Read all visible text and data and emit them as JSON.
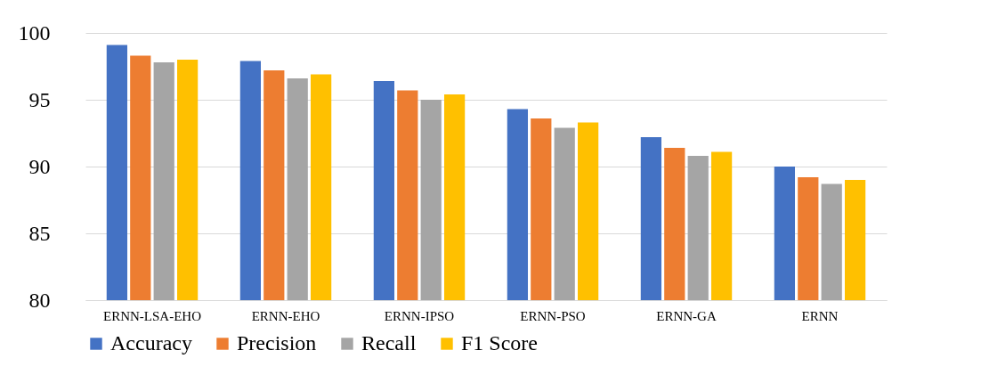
{
  "chart_data": {
    "type": "bar",
    "categories": [
      "ERNN-LSA-EHO",
      "ERNN-EHO",
      "ERNN-IPSO",
      "ERNN-PSO",
      "ERNN-GA",
      "ERNN"
    ],
    "series": [
      {
        "name": "Accuracy",
        "color": "#4472c4",
        "values": [
          99.1,
          97.9,
          96.4,
          94.3,
          92.2,
          90.0
        ]
      },
      {
        "name": "Precision",
        "color": "#ed7d31",
        "values": [
          98.3,
          97.2,
          95.7,
          93.6,
          91.4,
          89.2
        ]
      },
      {
        "name": "Recall",
        "color": "#a5a5a5",
        "values": [
          97.8,
          96.6,
          95.0,
          92.9,
          90.8,
          88.7
        ]
      },
      {
        "name": "F1 Score",
        "color": "#ffc000",
        "values": [
          98.0,
          96.9,
          95.4,
          93.3,
          91.1,
          89.0
        ]
      }
    ],
    "ylim": [
      80,
      100
    ],
    "yticks": [
      80,
      85,
      90,
      95,
      100
    ],
    "grid": "y",
    "legend": "bottom"
  }
}
